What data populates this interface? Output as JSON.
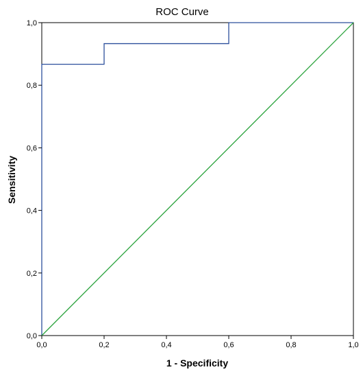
{
  "chart_data": {
    "type": "line",
    "title": "ROC Curve",
    "xlabel": "1 - Specificity",
    "ylabel": "Sensitivity",
    "xlim": [
      0,
      1
    ],
    "ylim": [
      0,
      1
    ],
    "x_ticks": [
      "0,0",
      "0,2",
      "0,4",
      "0,6",
      "0,8",
      "1,0"
    ],
    "y_ticks": [
      "0,0",
      "0,2",
      "0,4",
      "0,6",
      "0,8",
      "1,0"
    ],
    "grid": false,
    "series": [
      {
        "color": "#2b4f9c",
        "x": [
          0,
          0,
          0.2,
          0.2,
          0.6,
          0.6,
          1.0
        ],
        "y": [
          0,
          0.867,
          0.867,
          0.933,
          0.933,
          1.0,
          1.0
        ]
      },
      {
        "color": "#2aa33c",
        "x": [
          0,
          1
        ],
        "y": [
          0,
          1
        ]
      }
    ]
  }
}
